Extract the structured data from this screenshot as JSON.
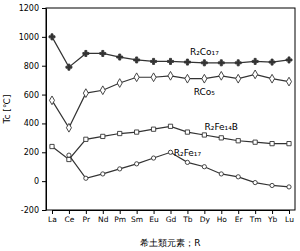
{
  "chart_data": {
    "type": "line",
    "x_label": "希土類元素；R",
    "y_label": "Tc [℃]",
    "categories": [
      "La",
      "Ce",
      "Pr",
      "Nd",
      "Pm",
      "Sm",
      "Eu",
      "Gd",
      "Tb",
      "Dy",
      "Ho",
      "Er",
      "Tm",
      "Yb",
      "Lu"
    ],
    "ylim": [
      -200,
      1200
    ],
    "yticks": [
      -200,
      0,
      200,
      400,
      600,
      800,
      1000,
      1200
    ],
    "grid": false,
    "series": [
      {
        "name": "R₂Co₁₇",
        "color": "#333333",
        "marker": "plus",
        "values": [
          1000,
          790,
          885,
          885,
          860,
          840,
          830,
          830,
          825,
          820,
          820,
          820,
          830,
          825,
          840
        ]
      },
      {
        "name": "RCo₅",
        "color": "#333333",
        "marker": "diamond",
        "values": [
          560,
          370,
          610,
          630,
          680,
          720,
          720,
          730,
          710,
          710,
          730,
          710,
          740,
          710,
          690
        ]
      },
      {
        "name": "R₂Fe₁₄B",
        "color": "#333333",
        "marker": "square",
        "values": [
          240,
          150,
          290,
          310,
          330,
          340,
          360,
          380,
          340,
          320,
          300,
          280,
          270,
          260,
          260
        ]
      },
      {
        "name": "R₂Fe₁₇",
        "color": "#333333",
        "marker": "circle",
        "values": [
          null,
          180,
          20,
          50,
          85,
          120,
          160,
          200,
          130,
          100,
          50,
          30,
          -10,
          -30,
          -40
        ]
      }
    ]
  }
}
